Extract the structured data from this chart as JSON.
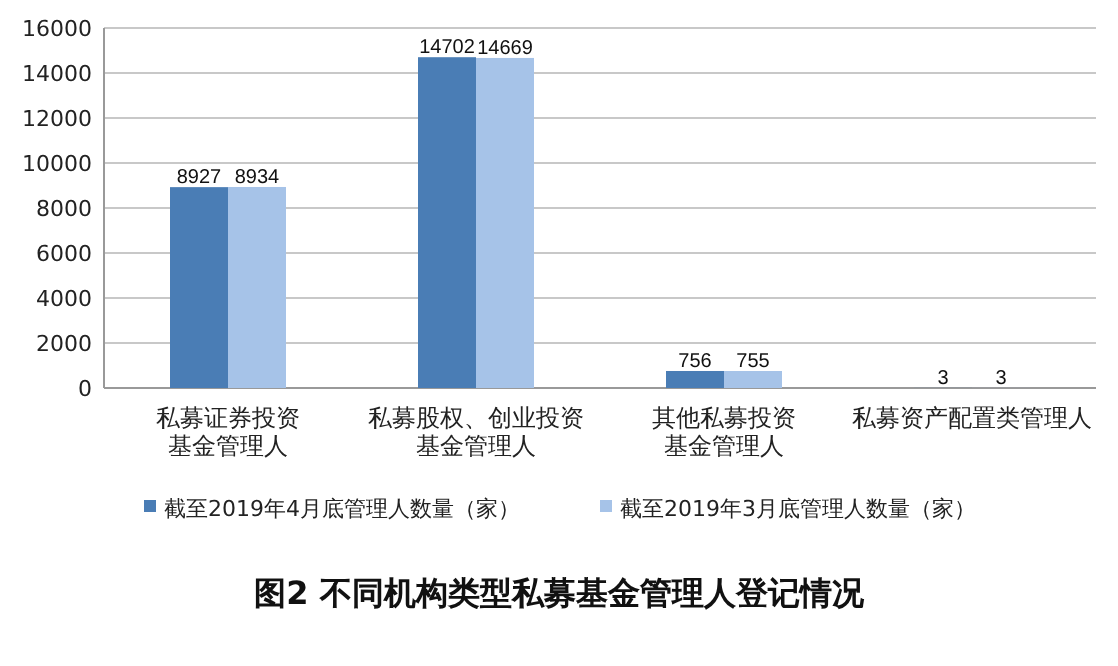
{
  "chart_data": {
    "type": "bar",
    "title": "图2  不同机构类型私募基金管理人登记情况",
    "categories": [
      "私募证券投资基金管理人",
      "私募股权、创业投资基金管理人",
      "其他私募投资基金管理人",
      "私募资产配置类管理人"
    ],
    "series": [
      {
        "name": "截至2019年4月底管理人数量（家）",
        "color": "#4a7db5",
        "values": [
          8927,
          14702,
          756,
          3
        ]
      },
      {
        "name": "截至2019年3月底管理人数量（家）",
        "color": "#a6c3e8",
        "values": [
          8934,
          14669,
          755,
          3
        ]
      }
    ],
    "ylim": [
      0,
      16000
    ],
    "yticks": [
      0,
      2000,
      4000,
      6000,
      8000,
      10000,
      12000,
      14000,
      16000
    ],
    "grid": "y",
    "legend": "bottom",
    "data_labels": true
  }
}
